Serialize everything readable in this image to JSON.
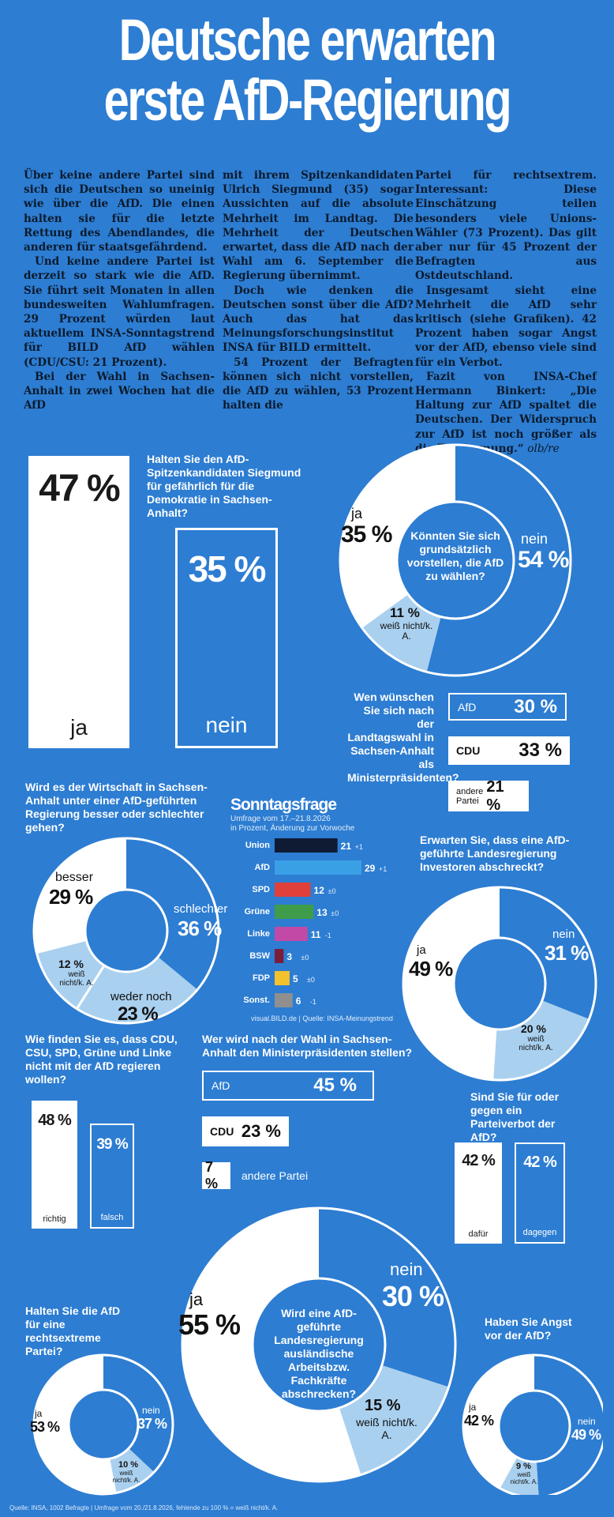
{
  "headline": {
    "line1": "Deutsche erwarten",
    "line2": "erste AfD-Regierung"
  },
  "article": {
    "c1p1": "Über keine andere Partei sind sich die Deutschen so uneinig wie über die AfD. Die einen halten sie für die letzte Rettung des Abendlandes, die anderen für staatsgefährdend.",
    "c1p2": "Und keine andere Partei ist derzeit so stark wie die AfD. Sie führt seit Monaten in allen bundesweiten Wahlumfragen. 29 Prozent würden laut aktuellem INSA-Sonntagstrend für BILD AfD wählen (CDU/CSU: 21 Prozent).",
    "c1p3": "Bei der Wahl in Sachsen-Anhalt in zwei Wochen hat die AfD",
    "c2p1": "mit ihrem Spitzenkandidaten Ulrich Siegmund (35) sogar Aussichten auf die absolute Mehrheit im Landtag. Die Mehrheit der Deutschen erwartet, dass die AfD nach der Wahl am 6. September die Regierung übernimmt.",
    "c2p2": "Doch wie denken die Deutschen sonst über die AfD? Auch das hat das Meinungsforschungsinstitut INSA für BILD ermittelt.",
    "c2p3": "54 Prozent der Befragten können sich nicht vorstellen, die AfD zu wählen, 53 Prozent halten die",
    "c3p1": "Partei für rechtsextrem. Interessant: Diese Einschätzung teilen besonders viele Unions-Wähler (73 Prozent). Das gilt aber nur für 45 Prozent der Befragten aus Ostdeutschland.",
    "c3p2": "Insgesamt sieht eine Mehrheit die AfD sehr kritisch (siehe Grafiken). 42 Prozent haben sogar Angst vor der AfD, ebenso viele sind für ein Verbot.",
    "c3p3": "Fazit von INSA-Chef Hermann Binkert: „Die Haltung zur AfD spaltet die Deutschen. Der Widerspruch zur AfD ist noch größer als die Zustimmung.“",
    "c3sig": "olb/re"
  },
  "q_danger": {
    "question": "Halten Sie den AfD-Spitzenkandidaten Siegmund für gefährlich für die Demokratie in Sachsen-Anhalt?",
    "ja_pct": "47 %",
    "ja_label": "ja",
    "nein_pct": "35 %",
    "nein_label": "nein"
  },
  "q_vote": {
    "question": "Könnten Sie sich grundsätzlich vorstellen, die AfD zu wählen?",
    "ja_label": "ja",
    "ja_pct": "35 %",
    "nein_label": "nein",
    "nein_pct": "54 %",
    "weiss_pct": "11 %",
    "weiss_label": "weiß nicht/k. A."
  },
  "q_mp": {
    "question": "Wen wünschen Sie sich nach der Landtagswahl in Sachsen-Anhalt als Ministerpräsidenten?",
    "bars": [
      {
        "label": "AfD",
        "pct": "30 %"
      },
      {
        "label": "CDU",
        "pct": "33 %"
      },
      {
        "label": "andere Partei",
        "pct": "21 %"
      }
    ]
  },
  "q_econ": {
    "question": "Wird es der Wirtschaft in Sachsen-Anhalt unter einer AfD-geführten Regierung besser oder schlechter gehen?",
    "besser_label": "besser",
    "besser_pct": "29 %",
    "schlechter_label": "schlechter",
    "schlechter_pct": "36 %",
    "weder_label": "weder noch",
    "weder_pct": "23 %",
    "weiss_pct": "12 %",
    "weiss_label": "weiß nicht/k. A."
  },
  "sonntagsfrage": {
    "title": "Sonntagsfrage",
    "sub1": "Umfrage vom 17.–21.8.2026",
    "sub2": "in Prozent, Änderung zur Vorwoche",
    "source": "visual.BILD.de | Quelle: INSA-Meinungstrend",
    "parties": [
      {
        "name": "Union",
        "value": 21,
        "change": "+1",
        "color": "#0e1b33"
      },
      {
        "name": "AfD",
        "value": 29,
        "change": "+1",
        "color": "#3aa0e6"
      },
      {
        "name": "SPD",
        "value": 12,
        "change": "±0",
        "color": "#e0403a"
      },
      {
        "name": "Grüne",
        "value": 13,
        "change": "±0",
        "color": "#3f9c4a"
      },
      {
        "name": "Linke",
        "value": 11,
        "change": "-1",
        "color": "#c24aa6"
      },
      {
        "name": "BSW",
        "value": 3,
        "change": "±0",
        "color": "#7a1e3a"
      },
      {
        "name": "FDP",
        "value": 5,
        "change": "±0",
        "color": "#f2c12e"
      },
      {
        "name": "Sonst.",
        "value": 6,
        "change": "-1",
        "color": "#8f8f8f"
      }
    ]
  },
  "q_investors": {
    "question": "Erwarten Sie, dass eine AfD-geführte Landesregierung Investoren abschreckt?",
    "ja_label": "ja",
    "ja_pct": "49 %",
    "nein_label": "nein",
    "nein_pct": "31 %",
    "weiss_pct": "20 %",
    "weiss_label": "weiß nicht/k. A."
  },
  "q_coalition": {
    "question": "Wie finden Sie es, dass CDU, CSU, SPD, Grüne und Linke nicht mit der AfD regieren wollen?",
    "richtig_pct": "48 %",
    "richtig_label": "richtig",
    "falsch_pct": "39 %",
    "falsch_label": "falsch"
  },
  "q_winner": {
    "question": "Wer wird nach der Wahl in Sachsen-Anhalt den Ministerpräsidenten stellen?",
    "bars": [
      {
        "label": "AfD",
        "pct": "45 %"
      },
      {
        "label": "CDU",
        "pct": "23 %"
      },
      {
        "label": "andere Partei",
        "pct": "7 %"
      }
    ]
  },
  "q_ban": {
    "question": "Sind Sie für oder gegen ein Parteiverbot der AfD?",
    "dafuer_pct": "42 %",
    "dafuer_label": "dafür",
    "dagegen_pct": "42 %",
    "dagegen_label": "dagegen"
  },
  "q_workers": {
    "question": "Wird eine AfD-geführte Landesregierung ausländische Arbeitsbzw. Fachkräfte abschrecken?",
    "ja_label": "ja",
    "ja_pct": "55 %",
    "nein_label": "nein",
    "nein_pct": "30 %",
    "weiss_pct": "15 %",
    "weiss_label": "weiß nicht/k. A."
  },
  "q_extreme": {
    "question": "Halten Sie die AfD für eine rechtsextreme Partei?",
    "ja_label": "ja",
    "ja_pct": "53 %",
    "nein_label": "nein",
    "nein_pct": "37 %",
    "weiss_pct": "10 %",
    "weiss_label": "weiß nicht/k. A."
  },
  "q_fear": {
    "question": "Haben Sie Angst vor der AfD?",
    "ja_label": "ja",
    "ja_pct": "42 %",
    "nein_label": "nein",
    "nein_pct": "49 %",
    "weiss_pct": "9 %",
    "weiss_label": "weiß nicht/k. A."
  },
  "footer": {
    "source": "Quelle: INSA, 1002 Befragte | Umfrage vom 20./21.8.2026, fehlende zu 100 % = weiß nicht/k. A."
  },
  "colors": {
    "background": "#2d7dd2",
    "white": "#ffffff",
    "light_blue": "#a9d0ef",
    "dark_text": "#1a1a1a"
  }
}
